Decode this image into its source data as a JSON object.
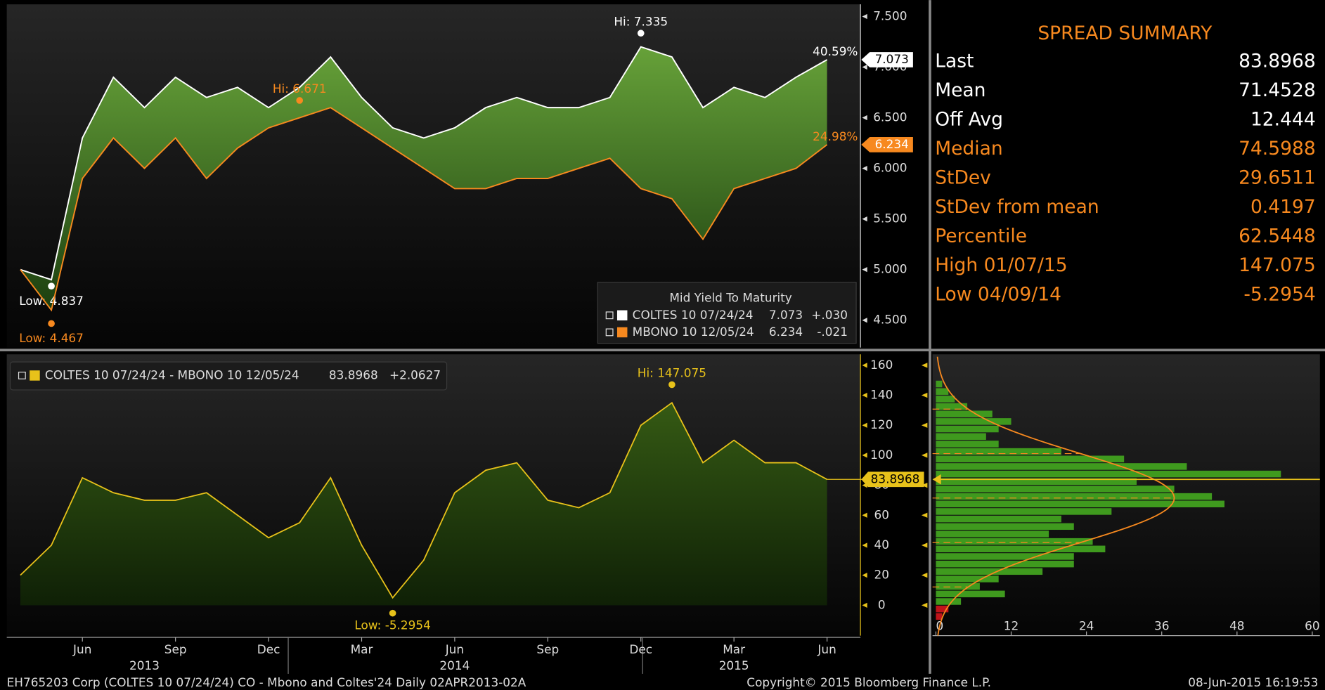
{
  "chart_data": [
    {
      "type": "line",
      "x": [
        "2013-04",
        "2013-05",
        "2013-06",
        "2013-07",
        "2013-08",
        "2013-09",
        "2013-10",
        "2013-11",
        "2013-12",
        "2014-01",
        "2014-02",
        "2014-03",
        "2014-04",
        "2014-05",
        "2014-06",
        "2014-07",
        "2014-08",
        "2014-09",
        "2014-10",
        "2014-11",
        "2014-12",
        "2015-01",
        "2015-02",
        "2015-03",
        "2015-04",
        "2015-05",
        "2015-06"
      ],
      "xticks": [
        {
          "value": "2013-06",
          "label": "Jun"
        },
        {
          "value": "2013-09",
          "label": "Sep"
        },
        {
          "value": "2013-12",
          "label": "Dec"
        },
        {
          "value": "2014-03",
          "label": "Mar"
        },
        {
          "value": "2014-06",
          "label": "Jun"
        },
        {
          "value": "2014-09",
          "label": "Sep"
        },
        {
          "value": "2014-12",
          "label": "Dec"
        },
        {
          "value": "2015-03",
          "label": "Mar"
        },
        {
          "value": "2015-06",
          "label": "Jun"
        }
      ],
      "year_labels": [
        {
          "value": "2013-08",
          "label": "2013"
        },
        {
          "value": "2014-06",
          "label": "2014"
        },
        {
          "value": "2015-03",
          "label": "2015"
        }
      ],
      "ylim": [
        4.23,
        7.62
      ],
      "yticks": [
        {
          "value": 4.5,
          "label": "4.500"
        },
        {
          "value": 5,
          "label": "5.000"
        },
        {
          "value": 5.5,
          "label": "5.500"
        },
        {
          "value": 6,
          "label": "6.000"
        },
        {
          "value": 6.5,
          "label": "6.500"
        },
        {
          "value": 7,
          "label": "7.000"
        },
        {
          "value": 7.5,
          "label": "7.500"
        }
      ],
      "legend": {
        "title": "Mid Yield To Maturity",
        "position": "lower right"
      },
      "series": [
        {
          "name": "COLTES 10 07/24/24",
          "color": "#ffffff",
          "values": [
            5.0,
            4.9,
            6.3,
            6.9,
            6.6,
            6.9,
            6.7,
            6.8,
            6.6,
            6.8,
            7.1,
            6.7,
            6.4,
            6.3,
            6.4,
            6.6,
            6.7,
            6.6,
            6.6,
            6.7,
            7.2,
            7.1,
            6.6,
            6.8,
            6.7,
            6.9,
            7.073
          ],
          "last_change": "+.030",
          "change_pct": "40.59%",
          "high": {
            "label": "Hi: 7.335",
            "x": "2014-12",
            "value": 7.335
          },
          "low": {
            "label": "Low: 4.837",
            "x": "2013-05",
            "value": 4.837
          }
        },
        {
          "name": "MBONO 10 12/05/24",
          "color": "#f7891f",
          "values": [
            5.0,
            4.6,
            5.9,
            6.3,
            6.0,
            6.3,
            5.9,
            6.2,
            6.4,
            6.5,
            6.6,
            6.4,
            6.2,
            6.0,
            5.8,
            5.8,
            5.9,
            5.9,
            6.0,
            6.1,
            5.8,
            5.7,
            5.3,
            5.8,
            5.9,
            6.0,
            6.234
          ],
          "last_change": "-.021",
          "change_pct": "24.98%",
          "high": {
            "label": "Hi: 6.671",
            "x": "2014-01",
            "value": 6.671
          },
          "low": {
            "label": "Low: 4.467",
            "x": "2013-05",
            "value": 4.467
          }
        }
      ]
    },
    {
      "type": "area",
      "x": [
        "2013-04",
        "2013-05",
        "2013-06",
        "2013-07",
        "2013-08",
        "2013-09",
        "2013-10",
        "2013-11",
        "2013-12",
        "2014-01",
        "2014-02",
        "2014-03",
        "2014-04",
        "2014-05",
        "2014-06",
        "2014-07",
        "2014-08",
        "2014-09",
        "2014-10",
        "2014-11",
        "2014-12",
        "2015-01",
        "2015-02",
        "2015-03",
        "2015-04",
        "2015-05",
        "2015-06"
      ],
      "ylim": [
        -20.3,
        167.3
      ],
      "yticks": [
        0,
        20,
        40,
        60,
        80,
        100,
        120,
        140,
        160
      ],
      "series": [
        {
          "name": "COLTES 10 07/24/24 - MBONO 10 12/05/24",
          "color": "#e8c21a",
          "values": [
            20,
            40,
            85,
            75,
            70,
            70,
            75,
            60,
            45,
            55,
            85,
            40,
            5,
            30,
            75,
            90,
            95,
            70,
            65,
            75,
            120,
            135,
            95,
            110,
            95,
            95,
            83.8968
          ],
          "last_change": "+2.0627",
          "high": {
            "label": "Hi: 147.075",
            "x": "2015-01",
            "value": 147.075
          },
          "low": {
            "label": "Low: -5.2954",
            "x": "2014-04",
            "value": -5.2954
          }
        }
      ]
    },
    {
      "type": "histogram",
      "orientation": "horizontal",
      "bins": [
        -10,
        -5,
        0,
        5,
        10,
        15,
        20,
        25,
        30,
        35,
        40,
        45,
        50,
        55,
        60,
        65,
        70,
        75,
        80,
        85,
        90,
        95,
        100,
        105,
        110,
        115,
        120,
        125,
        130,
        135,
        140,
        145,
        150
      ],
      "counts": [
        1,
        2,
        4,
        11,
        7,
        10,
        17,
        22,
        22,
        27,
        25,
        18,
        22,
        20,
        28,
        46,
        44,
        38,
        32,
        55,
        40,
        30,
        20,
        10,
        8,
        10,
        12,
        9,
        5,
        3,
        2,
        1
      ],
      "color": "#3f9a1e",
      "negative_color": "#c0141a",
      "ylim": [
        -20.3,
        167.3
      ],
      "xlim": [
        0,
        60
      ],
      "xticks": [
        0,
        12,
        24,
        36,
        48,
        60
      ],
      "curve": {
        "mean": 71.4528,
        "sd": 29.6511,
        "peak": 38,
        "color": "#f7891f"
      },
      "last_value": 83.8968
    }
  ],
  "summary": {
    "title": "SPREAD SUMMARY",
    "rows": [
      {
        "label": "Last",
        "value": 83.8968,
        "color": "#ffffff"
      },
      {
        "label": "Mean",
        "value": 71.4528,
        "color": "#ffffff"
      },
      {
        "label": "Off Avg",
        "value": 12.444,
        "color": "#ffffff"
      },
      {
        "label": "Median",
        "value": 74.5988,
        "color": "#f7891f"
      },
      {
        "label": "StDev",
        "value": 29.6511,
        "color": "#f7891f"
      },
      {
        "label": "StDev from mean",
        "value": 0.4197,
        "color": "#f7891f"
      },
      {
        "label": "Percentile",
        "value": 62.5448,
        "color": "#f7891f"
      },
      {
        "label": "High 01/07/15",
        "value": 147.075,
        "color": "#f7891f"
      },
      {
        "label": "Low 04/09/14",
        "value": -5.2954,
        "color": "#f7891f"
      }
    ]
  },
  "footer": {
    "left": "EH765203 Corp (COLTES 10 07/24/24) CO - Mbono and Coltes'24  Daily 02APR2013-02A",
    "center": "Copyright© 2015 Bloomberg Finance L.P.",
    "right": "08-Jun-2015 16:19:53"
  }
}
